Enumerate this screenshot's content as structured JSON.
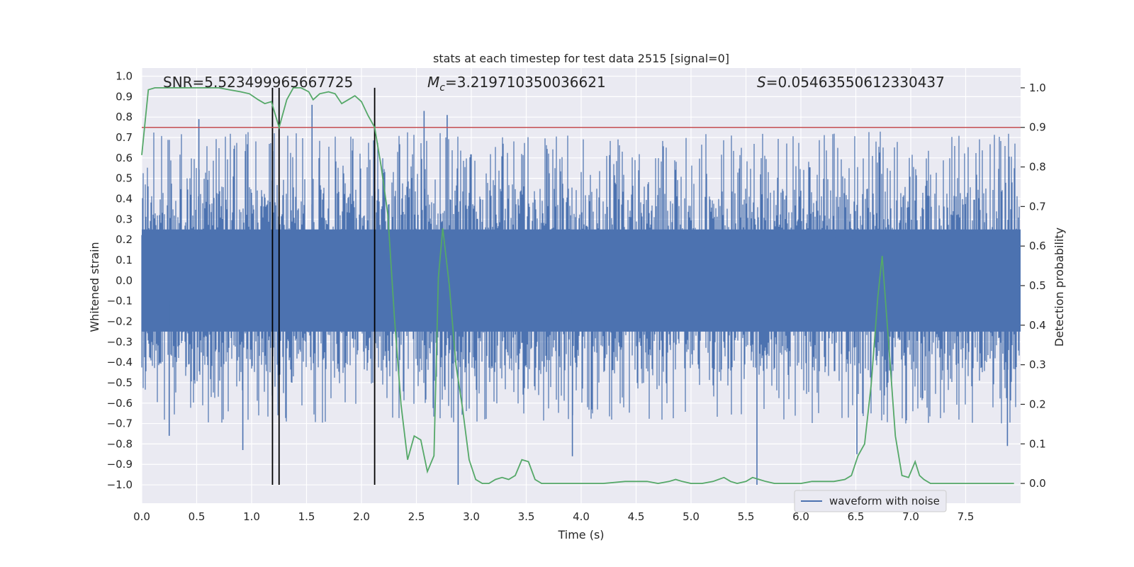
{
  "chart_data": {
    "type": "line",
    "title": "stats at each timestep for test data 2515 [signal=0]",
    "xlabel": "Time (s)",
    "ylabel": "Whitened strain",
    "y2label": "Detection probability",
    "xlim": [
      0.0,
      8.0
    ],
    "ylim": [
      -1.09,
      1.04
    ],
    "y2lim": [
      -0.05,
      1.05
    ],
    "xticks": [
      0.0,
      0.5,
      1.0,
      1.5,
      2.0,
      2.5,
      3.0,
      3.5,
      4.0,
      4.5,
      5.0,
      5.5,
      6.0,
      6.5,
      7.0,
      7.5
    ],
    "xtick_labels": [
      "0.0",
      "0.5",
      "1.0",
      "1.5",
      "2.0",
      "2.5",
      "3.0",
      "3.5",
      "4.0",
      "4.5",
      "5.0",
      "5.5",
      "6.0",
      "6.5",
      "7.0",
      "7.5"
    ],
    "yticks": [
      1.0,
      0.9,
      0.8,
      0.7,
      0.6,
      0.5,
      0.4,
      0.3,
      0.2,
      0.1,
      0.0,
      -0.1,
      -0.2,
      -0.3,
      -0.4,
      -0.5,
      -0.6,
      -0.7,
      -0.8,
      -0.9,
      -1.0
    ],
    "ytick_labels": [
      "1.0",
      "0.9",
      "0.8",
      "0.7",
      "0.6",
      "0.5",
      "0.4",
      "0.3",
      "0.2",
      "0.1",
      "0.0",
      "−0.1",
      "−0.2",
      "−0.3",
      "−0.4",
      "−0.5",
      "−0.6",
      "−0.7",
      "−0.8",
      "−0.9",
      "−1.0"
    ],
    "y2ticks": [
      1.0,
      0.9,
      0.8,
      0.7,
      0.6,
      0.5,
      0.4,
      0.3,
      0.2,
      0.1,
      0.0
    ],
    "y2tick_labels": [
      "1.0",
      "0.9",
      "0.8",
      "0.7",
      "0.6",
      "0.5",
      "0.4",
      "0.3",
      "0.2",
      "0.1",
      "0.0"
    ],
    "grid": true,
    "legend": {
      "placement": "lower-right",
      "entries": [
        "waveform with noise"
      ]
    },
    "annotations": {
      "snr": "SNR=5.523499965667725",
      "mc_symbol": "M",
      "mc_sub": "c",
      "mc_value": "=3.219710350036621",
      "s_symbol": "S",
      "s_value": "=0.05463550612330437"
    },
    "series": [
      {
        "name": "waveform with noise",
        "axis": "left",
        "style": "dense noise trace",
        "envelope": {
          "typical_max": 0.45,
          "typical_min": -0.45
        },
        "spikes": [
          {
            "x": 0.52,
            "y": 0.79
          },
          {
            "x": 0.92,
            "y": -0.83
          },
          {
            "x": 1.55,
            "y": 0.86
          },
          {
            "x": 2.57,
            "y": 0.83
          },
          {
            "x": 2.78,
            "y": 0.81
          },
          {
            "x": 2.88,
            "y": -1.0
          },
          {
            "x": 3.92,
            "y": -0.86
          },
          {
            "x": 5.6,
            "y": -1.0
          },
          {
            "x": 6.51,
            "y": -0.85
          },
          {
            "x": 7.88,
            "y": -0.81
          },
          {
            "x": 0.25,
            "y": -0.76
          }
        ]
      },
      {
        "name": "detection probability",
        "axis": "right",
        "color": "#55a868",
        "x": [
          0.0,
          0.06,
          0.12,
          0.2,
          0.3,
          0.4,
          0.5,
          0.6,
          0.7,
          0.8,
          0.9,
          0.98,
          1.06,
          1.12,
          1.18,
          1.25,
          1.32,
          1.38,
          1.45,
          1.52,
          1.56,
          1.62,
          1.7,
          1.76,
          1.82,
          1.88,
          1.94,
          2.0,
          2.06,
          2.12,
          2.18,
          2.24,
          2.3,
          2.36,
          2.42,
          2.48,
          2.54,
          2.6,
          2.66,
          2.7,
          2.74,
          2.8,
          2.86,
          2.92,
          2.98,
          3.04,
          3.1,
          3.16,
          3.22,
          3.28,
          3.34,
          3.4,
          3.46,
          3.52,
          3.58,
          3.64,
          3.7,
          3.8,
          3.9,
          4.0,
          4.2,
          4.4,
          4.6,
          4.7,
          4.8,
          4.86,
          4.92,
          5.0,
          5.1,
          5.2,
          5.3,
          5.36,
          5.42,
          5.5,
          5.56,
          5.62,
          5.68,
          5.76,
          5.9,
          6.0,
          6.1,
          6.2,
          6.3,
          6.4,
          6.46,
          6.52,
          6.58,
          6.64,
          6.7,
          6.74,
          6.8,
          6.86,
          6.92,
          6.98,
          7.04,
          7.08,
          7.12,
          7.18,
          7.3,
          7.5,
          7.7,
          7.8,
          7.94
        ],
        "y": [
          0.83,
          0.995,
          1.0,
          1.0,
          1.0,
          1.0,
          1.0,
          1.0,
          1.0,
          0.995,
          0.99,
          0.985,
          0.97,
          0.96,
          0.965,
          0.9,
          0.97,
          1.0,
          1.0,
          0.99,
          0.97,
          0.985,
          0.99,
          0.985,
          0.96,
          0.97,
          0.98,
          0.965,
          0.93,
          0.9,
          0.8,
          0.68,
          0.42,
          0.2,
          0.06,
          0.12,
          0.11,
          0.03,
          0.07,
          0.52,
          0.645,
          0.5,
          0.3,
          0.19,
          0.06,
          0.01,
          0.0,
          0.0,
          0.01,
          0.015,
          0.01,
          0.02,
          0.06,
          0.055,
          0.01,
          0.0,
          0.0,
          0.0,
          0.0,
          0.0,
          0.0,
          0.005,
          0.005,
          0.0,
          0.005,
          0.01,
          0.005,
          0.0,
          0.0,
          0.005,
          0.015,
          0.005,
          0.0,
          0.005,
          0.015,
          0.01,
          0.005,
          0.0,
          0.0,
          0.0,
          0.005,
          0.005,
          0.005,
          0.01,
          0.02,
          0.07,
          0.1,
          0.25,
          0.47,
          0.575,
          0.35,
          0.12,
          0.02,
          0.015,
          0.055,
          0.02,
          0.01,
          0.0,
          0.0,
          0.0,
          0.0,
          0.0,
          0.0
        ]
      }
    ],
    "threshold": {
      "axis": "right",
      "value": 0.9,
      "color": "#c44e52"
    },
    "vertical_markers": {
      "x": [
        1.19,
        1.25,
        2.12
      ],
      "y_top": 1.0,
      "y_bottom": -1.0,
      "color": "#000000"
    }
  }
}
